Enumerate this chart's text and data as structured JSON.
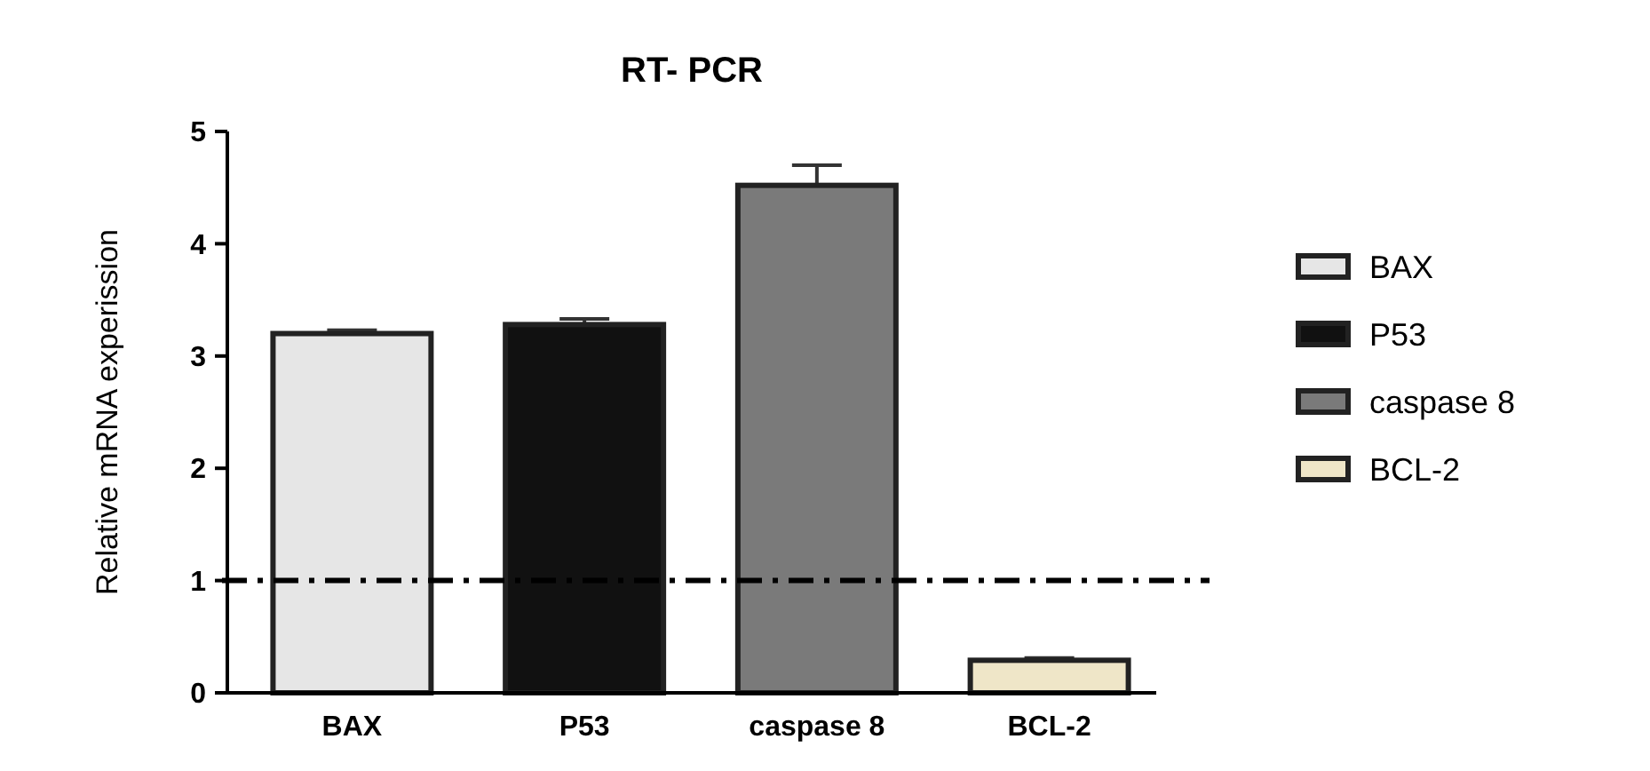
{
  "chart_data": {
    "type": "bar",
    "title": "RT- PCR",
    "ylabel": "Relative mRNA experission",
    "categories": [
      "BAX",
      "P53",
      "caspase 8",
      "BCL-2"
    ],
    "series": [
      {
        "name": "BAX",
        "color": "#e6e6e6",
        "values": [
          3.2,
          null,
          null,
          null
        ],
        "errors": [
          0.03,
          null,
          null,
          null
        ]
      },
      {
        "name": "P53",
        "color": "#111111",
        "values": [
          null,
          3.28,
          null,
          null
        ],
        "errors": [
          null,
          0.05,
          null,
          null
        ]
      },
      {
        "name": "caspase 8",
        "color": "#7a7a7a",
        "values": [
          null,
          null,
          4.52,
          null
        ],
        "errors": [
          null,
          null,
          0.18,
          null
        ]
      },
      {
        "name": "BCL-2",
        "color": "#efe6c8",
        "values": [
          null,
          null,
          null,
          0.29
        ],
        "errors": [
          null,
          null,
          null,
          0.02
        ]
      }
    ],
    "ylim": [
      0,
      5
    ],
    "yticks": [
      0,
      1,
      2,
      3,
      4,
      5
    ],
    "ref_lines": [
      {
        "axis": "y",
        "value": 1,
        "label": null,
        "color": "#000000",
        "line_style": "dashed"
      }
    ],
    "legend": "right",
    "grid": false
  }
}
